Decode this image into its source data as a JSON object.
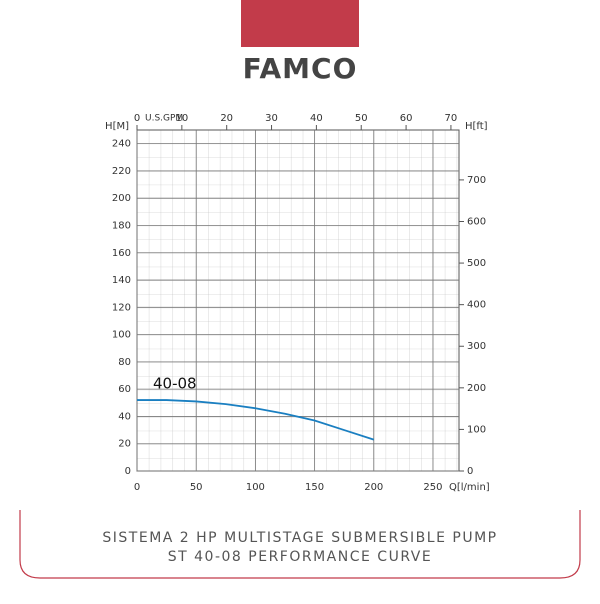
{
  "brand": "FAMCO",
  "chart_data": {
    "type": "line",
    "x_label": "Q[l/min]",
    "y_label": "H[M]",
    "y2_label": "H[ft]",
    "x2_label": "U.S.GPM",
    "xlim": [
      0,
      272
    ],
    "xticks": [
      0,
      50,
      100,
      150,
      200,
      250
    ],
    "x2lim": [
      0,
      71.8
    ],
    "x2ticks": [
      0,
      10,
      20,
      30,
      40,
      50,
      60,
      70
    ],
    "ylim": [
      0,
      250
    ],
    "yticks": [
      0,
      20,
      40,
      60,
      80,
      100,
      120,
      140,
      160,
      180,
      200,
      220,
      240
    ],
    "y2lim": [
      0,
      820
    ],
    "y2ticks": [
      0,
      100,
      200,
      300,
      400,
      500,
      600,
      700
    ],
    "grid": true,
    "x": [
      0,
      25,
      50,
      75,
      100,
      125,
      150,
      175,
      200
    ],
    "series": [
      {
        "name": "40-08",
        "color": "#1a7fc1",
        "values": [
          52,
          52,
          51,
          49,
          46,
          42,
          37,
          30,
          23
        ]
      }
    ]
  },
  "footer": {
    "line1": "SISTEMA 2 HP MULTISTAGE SUBMERSIBLE PUMP",
    "line2": "ST 40-08 PERFORMANCE CURVE"
  }
}
